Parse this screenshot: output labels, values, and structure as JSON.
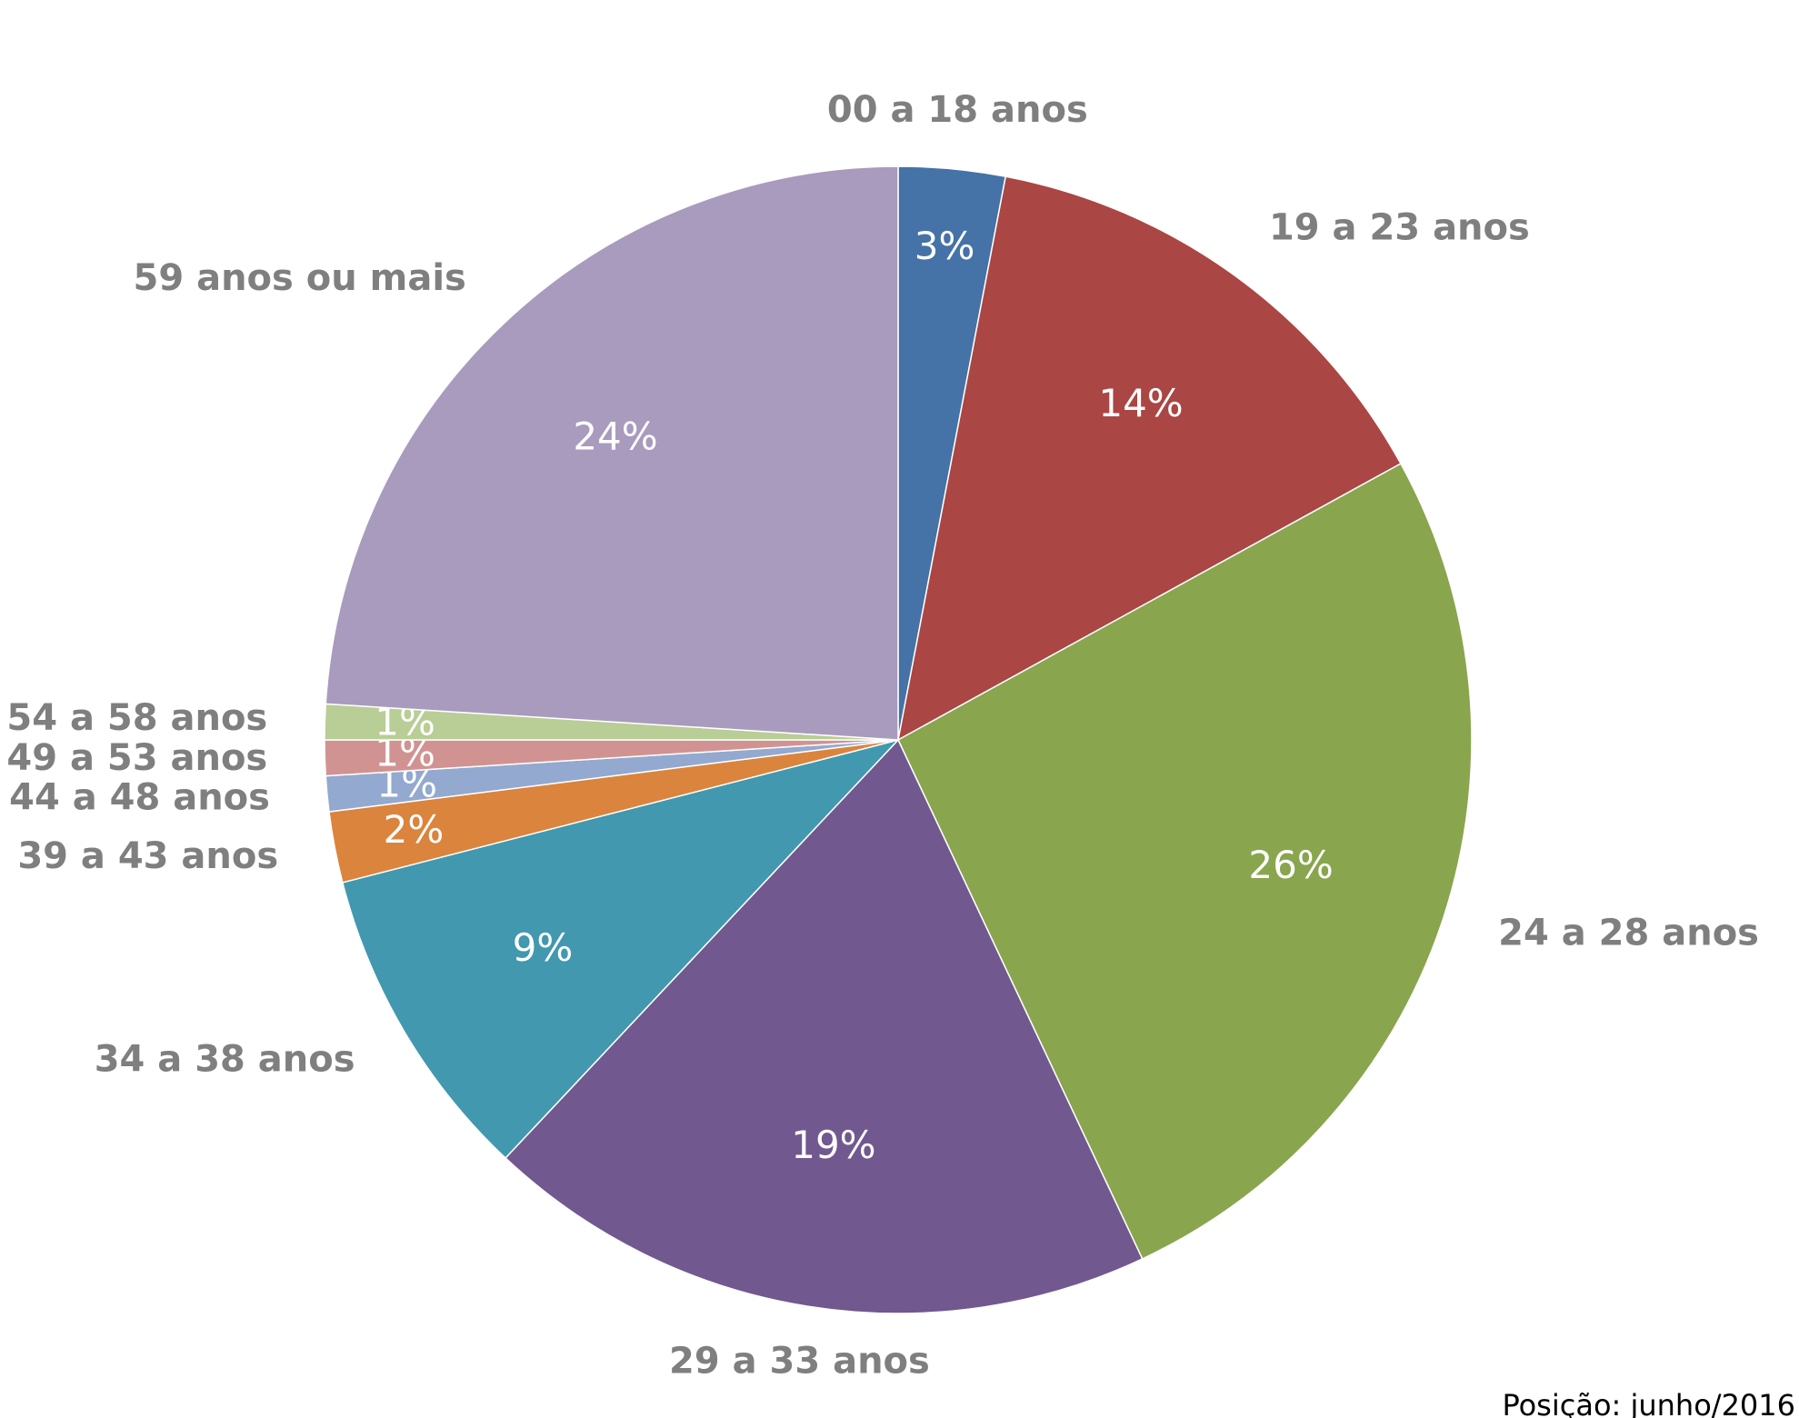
{
  "chart_data": {
    "type": "pie",
    "categories": [
      "00 a 18 anos",
      "19 a 23 anos",
      "24 a 28 anos",
      "29 a 33 anos",
      "34 a 38 anos",
      "39 a 43 anos",
      "44 a 48 anos",
      "49 a 53 anos",
      "54 a 58 anos",
      "59 anos ou mais"
    ],
    "values": [
      3,
      14,
      26,
      19,
      9,
      2,
      1,
      1,
      1,
      24
    ],
    "value_labels": [
      "3%",
      "14%",
      "26%",
      "19%",
      "9%",
      "2%",
      "1%",
      "1%",
      "1%",
      "24%"
    ],
    "colors": [
      "#4572a7",
      "#aa4643",
      "#89a54e",
      "#71588f",
      "#4198af",
      "#db843d",
      "#93a9cf",
      "#d19392",
      "#b9cd96",
      "#a99bbd"
    ],
    "start_angle": 0,
    "direction": "clockwise",
    "note": "Posição: junho/2016"
  }
}
